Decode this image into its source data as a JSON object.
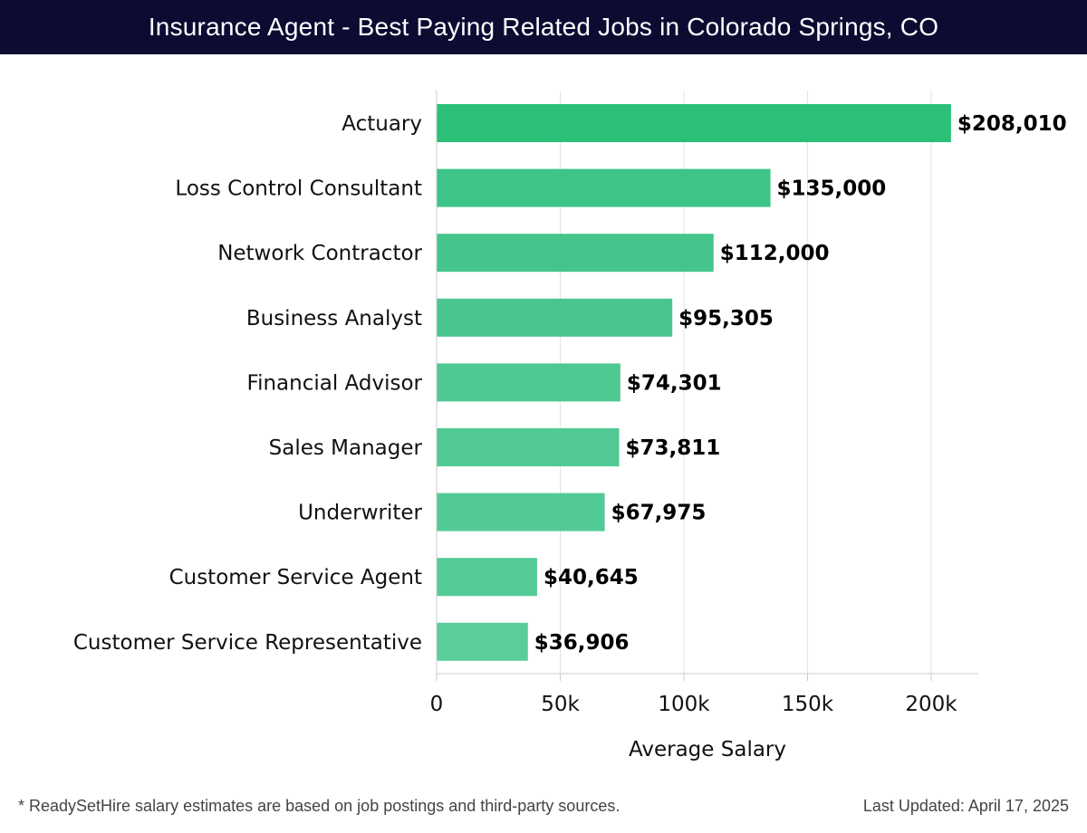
{
  "header": {
    "title": "Insurance Agent - Best Paying Related Jobs in Colorado Springs, CO"
  },
  "footer": {
    "note": "* ReadySetHire salary estimates are based on job postings and third-party sources.",
    "updated": "Last Updated: April 17, 2025"
  },
  "chart_data": {
    "type": "bar",
    "orientation": "horizontal",
    "title": "Insurance Agent - Best Paying Related Jobs in Colorado Springs, CO",
    "xlabel": "Average Salary",
    "ylabel": "",
    "xlim": [
      0,
      220000
    ],
    "grid": true,
    "categories": [
      "Actuary",
      "Loss Control Consultant",
      "Network Contractor",
      "Business Analyst",
      "Financial Advisor",
      "Sales Manager",
      "Underwriter",
      "Customer Service Agent",
      "Customer Service Representative"
    ],
    "values": [
      208010,
      135000,
      112000,
      95305,
      74301,
      73811,
      67975,
      40645,
      36906
    ],
    "value_labels": [
      "$208,010",
      "$135,000",
      "$112,000",
      "$95,305",
      "$74,301",
      "$73,811",
      "$67,975",
      "$40,645",
      "$36,906"
    ],
    "ticks": [
      0,
      50000,
      100000,
      150000,
      200000
    ],
    "tick_labels": [
      "0",
      "50k",
      "100k",
      "150k",
      "200k"
    ],
    "bar_colors": [
      "#2bbf78",
      "#3ec487",
      "#45c58b",
      "#48c68e",
      "#4ec891",
      "#50c993",
      "#52ca95",
      "#55cb97",
      "#5acd9a"
    ]
  }
}
